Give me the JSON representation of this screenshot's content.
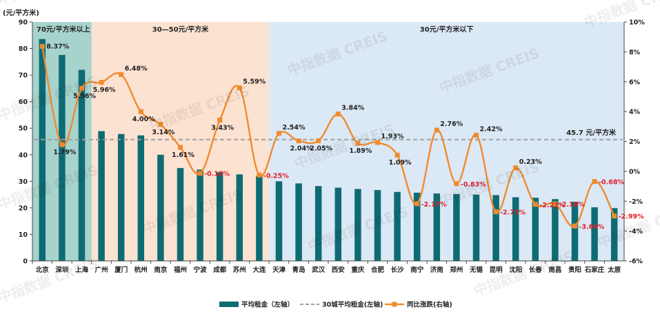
{
  "chart_data": {
    "type": "bar",
    "left_axis_unit": "(元/平方米)",
    "categories": [
      "北京",
      "深圳",
      "上海",
      "广州",
      "厦门",
      "杭州",
      "南京",
      "福州",
      "宁波",
      "成都",
      "苏州",
      "大连",
      "天津",
      "青岛",
      "武汉",
      "西安",
      "重庆",
      "合肥",
      "长沙",
      "南宁",
      "济南",
      "郑州",
      "无锡",
      "昆明",
      "沈阳",
      "长春",
      "南昌",
      "贵阳",
      "石家庄",
      "太原"
    ],
    "series": [
      {
        "name": "平均租金（左轴）",
        "axis": "left",
        "type": "bar",
        "color": "#0f6b73",
        "values": [
          83.6,
          77.6,
          72.0,
          48.9,
          47.8,
          47.3,
          40.0,
          35.0,
          34.4,
          33.4,
          32.6,
          32.0,
          30.0,
          29.2,
          28.2,
          27.6,
          27.1,
          26.7,
          26.0,
          25.7,
          25.4,
          25.2,
          25.0,
          24.8,
          24.0,
          23.8,
          23.3,
          22.3,
          20.2,
          19.9
        ]
      },
      {
        "name": "同比涨跌(右轴)",
        "axis": "right",
        "type": "line",
        "color": "#f08a2c",
        "values": [
          8.37,
          1.79,
          5.56,
          5.96,
          6.48,
          4.0,
          3.14,
          1.61,
          -0.13,
          3.43,
          5.59,
          -0.25,
          2.54,
          2.04,
          2.05,
          3.84,
          1.89,
          1.93,
          1.09,
          -2.17,
          2.76,
          -0.83,
          2.42,
          -2.71,
          0.23,
          -2.21,
          -2.18,
          -3.66,
          -0.68,
          -2.99
        ],
        "labels": [
          "8.37%",
          "1.79%",
          "5.56%",
          "5.96%",
          "6.48%",
          "4.00%",
          "3.14%",
          "1.61%",
          "-0.13%",
          "3.43%",
          "5.59%",
          "-0.25%",
          "2.54%",
          "2.04%",
          "2.05%",
          "3.84%",
          "1.89%",
          "1.93%",
          "1.09%",
          "-2.17%",
          "2.76%",
          "-0.83%",
          "2.42%",
          "-2.71%",
          "0.23%",
          "-2.21%",
          "-2.18%",
          "-3.66%",
          "-0.68%",
          "-2.99%"
        ]
      }
    ],
    "reference_line": {
      "name": "30城平均租金(左轴)",
      "value": 45.7,
      "label": "45.7 元/平方米",
      "color": "#9e9e9e"
    },
    "left_axis": {
      "min": 0,
      "max": 90,
      "ticks": [
        "0",
        "10",
        "20",
        "30",
        "40",
        "50",
        "60",
        "70",
        "80",
        "90"
      ]
    },
    "right_axis": {
      "min": -6,
      "max": 10,
      "ticks": [
        "-6%",
        "-4%",
        "-2%",
        "0%",
        "2%",
        "4%",
        "6%",
        "8%",
        "10%"
      ]
    },
    "bands": [
      {
        "label": "70元/平方米以上",
        "start": 0,
        "end": 2,
        "color": "#a7d3cd"
      },
      {
        "label": "30—50元/平方米",
        "start": 3,
        "end": 11,
        "color": "#fce2d1"
      },
      {
        "label": "30元/平方米以下",
        "start": 12,
        "end": 29,
        "color": "#dbe8f5"
      }
    ],
    "legend": {
      "placement": "bottom-center",
      "items": [
        "平均租金（左轴）",
        "30城平均租金(左轴)",
        "同比涨跌(右轴)"
      ]
    },
    "watermark": "中指数据 CREIS"
  }
}
